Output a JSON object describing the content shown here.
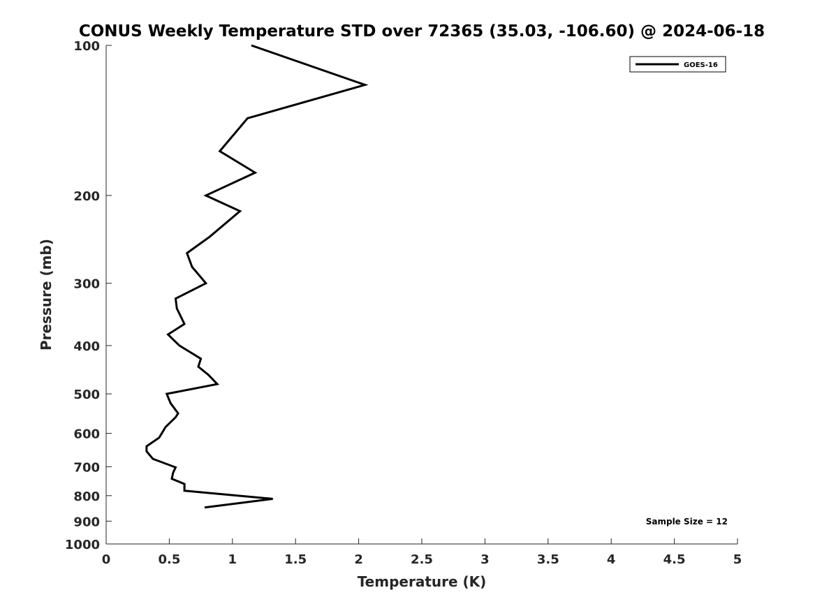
{
  "chart_data": {
    "type": "line",
    "title": "CONUS Weekly Temperature STD over 72365 (35.03, -106.60) @ 2024-06-18",
    "xlabel": "Temperature (K)",
    "ylabel": "Pressure (mb)",
    "xlim": [
      0,
      5
    ],
    "ylim": [
      1000,
      100
    ],
    "y_scale": "log",
    "y_reversed": true,
    "grid": false,
    "legend_position": "top-right",
    "x_ticks": [
      "0",
      "0.5",
      "1",
      "1.5",
      "2",
      "2.5",
      "3",
      "3.5",
      "4",
      "4.5",
      "5"
    ],
    "y_ticks": [
      "100",
      "200",
      "300",
      "400",
      "500",
      "600",
      "700",
      "800",
      "900",
      "1000"
    ],
    "annotation": "Sample Size = 12",
    "series": [
      {
        "name": "GOES-16",
        "color": "#000000",
        "points": [
          {
            "x": 1.15,
            "y": 100
          },
          {
            "x": 2.05,
            "y": 120
          },
          {
            "x": 1.12,
            "y": 140
          },
          {
            "x": 0.9,
            "y": 163
          },
          {
            "x": 1.18,
            "y": 180
          },
          {
            "x": 0.79,
            "y": 200
          },
          {
            "x": 1.06,
            "y": 215
          },
          {
            "x": 0.82,
            "y": 242
          },
          {
            "x": 0.64,
            "y": 261
          },
          {
            "x": 0.68,
            "y": 278
          },
          {
            "x": 0.79,
            "y": 300
          },
          {
            "x": 0.55,
            "y": 322
          },
          {
            "x": 0.56,
            "y": 337
          },
          {
            "x": 0.62,
            "y": 362
          },
          {
            "x": 0.49,
            "y": 380
          },
          {
            "x": 0.58,
            "y": 400
          },
          {
            "x": 0.75,
            "y": 425
          },
          {
            "x": 0.73,
            "y": 441
          },
          {
            "x": 0.81,
            "y": 458
          },
          {
            "x": 0.88,
            "y": 478
          },
          {
            "x": 0.48,
            "y": 500
          },
          {
            "x": 0.51,
            "y": 522
          },
          {
            "x": 0.57,
            "y": 547
          },
          {
            "x": 0.55,
            "y": 557
          },
          {
            "x": 0.47,
            "y": 583
          },
          {
            "x": 0.42,
            "y": 612
          },
          {
            "x": 0.32,
            "y": 637
          },
          {
            "x": 0.32,
            "y": 652
          },
          {
            "x": 0.37,
            "y": 675
          },
          {
            "x": 0.55,
            "y": 702
          },
          {
            "x": 0.53,
            "y": 720
          },
          {
            "x": 0.52,
            "y": 740
          },
          {
            "x": 0.62,
            "y": 758
          },
          {
            "x": 0.62,
            "y": 782
          },
          {
            "x": 1.32,
            "y": 812
          },
          {
            "x": 0.78,
            "y": 845
          }
        ]
      }
    ]
  }
}
